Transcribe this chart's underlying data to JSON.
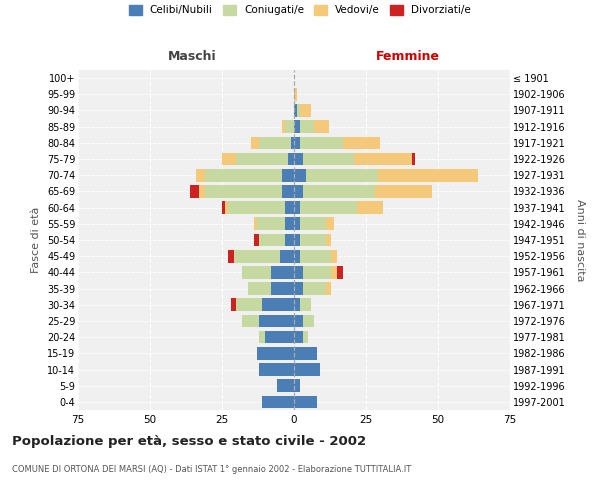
{
  "age_groups": [
    "0-4",
    "5-9",
    "10-14",
    "15-19",
    "20-24",
    "25-29",
    "30-34",
    "35-39",
    "40-44",
    "45-49",
    "50-54",
    "55-59",
    "60-64",
    "65-69",
    "70-74",
    "75-79",
    "80-84",
    "85-89",
    "90-94",
    "95-99",
    "100+"
  ],
  "birth_years": [
    "1997-2001",
    "1992-1996",
    "1987-1991",
    "1982-1986",
    "1977-1981",
    "1972-1976",
    "1967-1971",
    "1962-1966",
    "1957-1961",
    "1952-1956",
    "1947-1951",
    "1942-1946",
    "1937-1941",
    "1932-1936",
    "1927-1931",
    "1922-1926",
    "1917-1921",
    "1912-1916",
    "1907-1911",
    "1902-1906",
    "≤ 1901"
  ],
  "maschi": {
    "celibi": [
      11,
      6,
      12,
      13,
      10,
      12,
      11,
      8,
      8,
      5,
      3,
      3,
      3,
      4,
      4,
      2,
      1,
      0,
      0,
      0,
      0
    ],
    "coniugati": [
      0,
      0,
      0,
      0,
      2,
      6,
      9,
      8,
      10,
      16,
      9,
      10,
      20,
      27,
      27,
      18,
      11,
      3,
      0,
      0,
      0
    ],
    "vedovi": [
      0,
      0,
      0,
      0,
      0,
      0,
      0,
      0,
      0,
      0,
      0,
      1,
      1,
      2,
      3,
      5,
      3,
      1,
      0,
      0,
      0
    ],
    "divorziati": [
      0,
      0,
      0,
      0,
      0,
      0,
      2,
      0,
      0,
      2,
      2,
      0,
      1,
      3,
      0,
      0,
      0,
      0,
      0,
      0,
      0
    ]
  },
  "femmine": {
    "nubili": [
      8,
      2,
      9,
      8,
      3,
      3,
      2,
      3,
      3,
      2,
      2,
      2,
      2,
      3,
      4,
      3,
      2,
      2,
      1,
      0,
      0
    ],
    "coniugate": [
      0,
      0,
      0,
      0,
      2,
      4,
      4,
      8,
      10,
      11,
      9,
      9,
      20,
      25,
      25,
      18,
      15,
      5,
      1,
      0,
      0
    ],
    "vedove": [
      0,
      0,
      0,
      0,
      0,
      0,
      0,
      2,
      2,
      2,
      2,
      3,
      9,
      20,
      35,
      20,
      13,
      5,
      4,
      1,
      0
    ],
    "divorziate": [
      0,
      0,
      0,
      0,
      0,
      0,
      0,
      0,
      2,
      0,
      0,
      0,
      0,
      0,
      0,
      1,
      0,
      0,
      0,
      0,
      0
    ]
  },
  "colors": {
    "celibi": "#4a7eb5",
    "coniugati": "#c5d9a0",
    "vedovi": "#f5c97a",
    "divorziati": "#cc2222"
  },
  "xlim": [
    -75,
    75
  ],
  "xlabel_left": "Maschi",
  "xlabel_right": "Femmine",
  "ylabel_left": "Fasce di età",
  "ylabel_right": "Anni di nascita",
  "title": "Popolazione per età, sesso e stato civile - 2002",
  "subtitle": "COMUNE DI ORTONA DEI MARSI (AQ) - Dati ISTAT 1° gennaio 2002 - Elaborazione TUTTITALIA.IT",
  "legend_labels": [
    "Celibi/Nubili",
    "Coniugati/e",
    "Vedovi/e",
    "Divorziati/e"
  ],
  "bg_color": "#f0f0f0",
  "grid_color": "#cccccc"
}
